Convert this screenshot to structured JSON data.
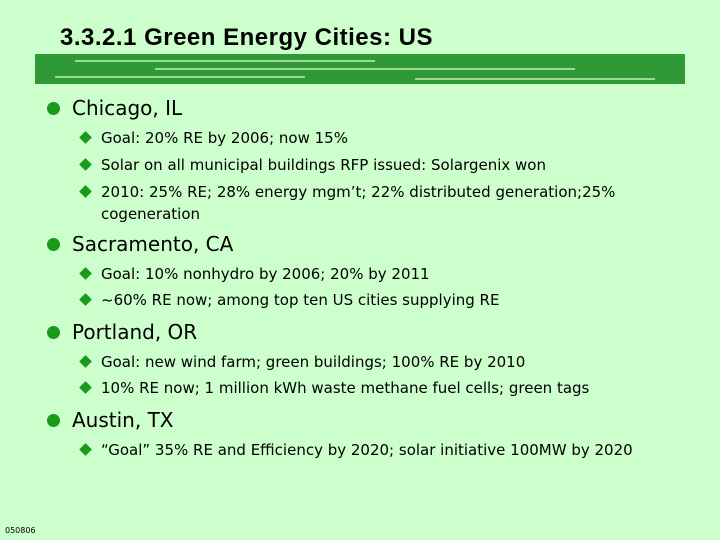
{
  "header": {
    "title": "3.3.2.1 Green Energy Cities: US"
  },
  "bullets": [
    {
      "text": "Chicago, IL",
      "items": [
        "Goal: 20% RE by 2006; now 15%",
        "Solar on all municipal buildings RFP issued: Solargenix won",
        "2010: 25% RE; 28% energy mgm’t; 22% distributed generation;25% cogeneration"
      ]
    },
    {
      "text": "Sacramento, CA",
      "items": [
        "Goal: 10% nonhydro by 2006; 20% by 2011",
        "~60% RE now; among top ten US cities supplying RE"
      ]
    },
    {
      "text": "Portland, OR",
      "items": [
        "Goal: new wind farm; green buildings; 100% RE by 2010",
        "10% RE now; 1 million kWh waste methane fuel cells; green tags"
      ]
    },
    {
      "text": "Austin, TX",
      "items": [
        "“Goal” 35% RE and Efficiency by 2020; solar initiative 100MW by 2020"
      ]
    }
  ],
  "footer": {
    "code": "050806"
  }
}
